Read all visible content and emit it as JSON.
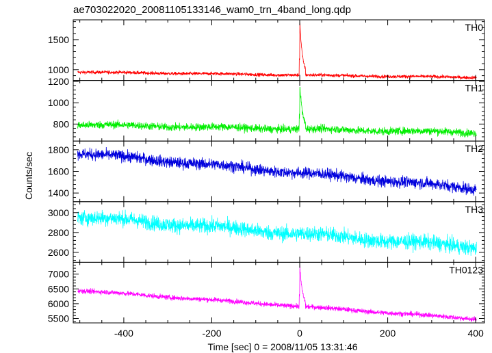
{
  "chart_data": {
    "type": "line",
    "title": "ae703022020_20081105133146_wam0_trn_4band_long.qdp",
    "xlabel": "Time [sec] 0 = 2008/11/05 13:31:46",
    "ylabel": "Counts/sec",
    "xlim": [
      -515,
      420
    ],
    "xticks": [
      -400,
      -200,
      0,
      200,
      400
    ],
    "x_range": [
      -505,
      402
    ],
    "panels": [
      {
        "name": "TH0",
        "color": "#ff0000",
        "ylim": [
          820,
          1830
        ],
        "yticks": [
          1000,
          1500
        ],
        "trend": [
          {
            "x": -505,
            "y": 960
          },
          {
            "x": 402,
            "y": 870
          }
        ],
        "noise": 20,
        "peak": {
          "x": 0,
          "y": 1830,
          "width": 6
        }
      },
      {
        "name": "TH1",
        "color": "#00ee00",
        "ylim": [
          640,
          1210
        ],
        "yticks": [
          800,
          1000,
          1200
        ],
        "trend": [
          {
            "x": -505,
            "y": 795
          },
          {
            "x": 402,
            "y": 720
          }
        ],
        "noise": 26,
        "peak": {
          "x": 0,
          "y": 1190,
          "width": 6
        }
      },
      {
        "name": "TH2",
        "color": "#0000dd",
        "ylim": [
          1320,
          1880
        ],
        "yticks": [
          1400,
          1600,
          1800
        ],
        "trend": [
          {
            "x": -505,
            "y": 1770
          },
          {
            "x": 402,
            "y": 1440
          }
        ],
        "noise": 38,
        "peak": null
      },
      {
        "name": "TH3",
        "color": "#00ffff",
        "ylim": [
          2500,
          3110
        ],
        "yticks": [
          2600,
          2800,
          3000
        ],
        "trend": [
          {
            "x": -505,
            "y": 2960
          },
          {
            "x": 402,
            "y": 2650
          }
        ],
        "noise": 55,
        "peak": null
      },
      {
        "name": "TH0123",
        "color": "#ff00ff",
        "ylim": [
          5350,
          7400
        ],
        "yticks": [
          5500,
          6000,
          6500,
          7000
        ],
        "trend": [
          {
            "x": -505,
            "y": 6450
          },
          {
            "x": 402,
            "y": 5480
          }
        ],
        "noise": 60,
        "peak": {
          "x": 0,
          "y": 7300,
          "width": 6
        }
      }
    ],
    "grid": false,
    "legend": "none"
  }
}
